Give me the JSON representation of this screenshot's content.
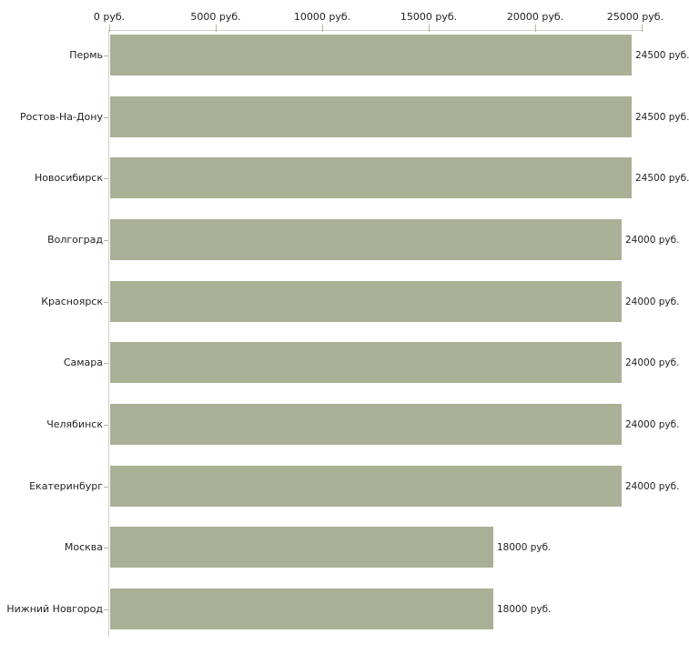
{
  "chart_data": {
    "type": "bar",
    "orientation": "horizontal",
    "title": "",
    "xlabel": "",
    "ylabel": "",
    "xlim": [
      0,
      25000
    ],
    "x_tick_values": [
      0,
      5000,
      10000,
      15000,
      20000,
      25000
    ],
    "x_tick_labels": [
      "0 руб.",
      "5000 руб.",
      "10000 руб.",
      "15000 руб.",
      "20000 руб.",
      "25000 руб."
    ],
    "categories": [
      "Пермь",
      "Ростов-На-Дону",
      "Новосибирск",
      "Волгоград",
      "Красноярск",
      "Самара",
      "Челябинск",
      "Екатеринбург",
      "Москва",
      "Нижний Новгород"
    ],
    "values": [
      24500,
      24500,
      24500,
      24000,
      24000,
      24000,
      24000,
      24000,
      18000,
      18000
    ],
    "bar_labels": [
      "24500 руб.",
      "24500 руб.",
      "24500 руб.",
      "24000 руб.",
      "24000 руб.",
      "24000 руб.",
      "24000 руб.",
      "24000 руб.",
      "18000 руб.",
      "18000 руб."
    ],
    "grid": false,
    "legend": "none",
    "colors": {
      "bar": "#aab095",
      "axis_line": "#cfcfc6",
      "tick": "#b4b4a0",
      "text": "#222222",
      "background": "#ffffff"
    }
  }
}
